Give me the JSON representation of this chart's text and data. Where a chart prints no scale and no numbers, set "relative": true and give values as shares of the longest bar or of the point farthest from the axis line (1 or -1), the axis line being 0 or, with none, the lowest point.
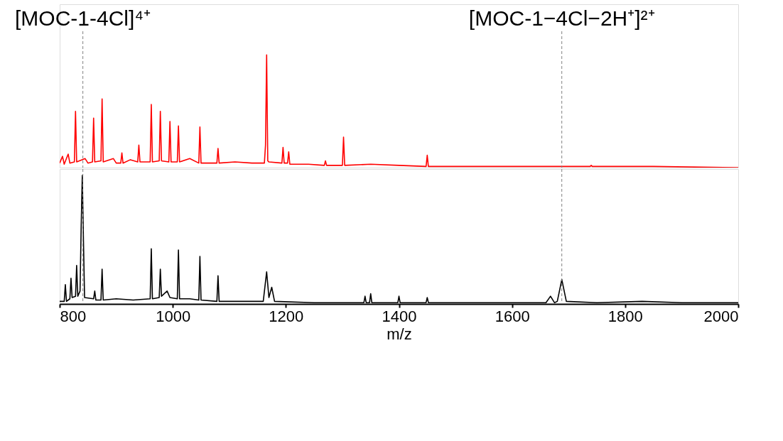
{
  "chart_data": [
    {
      "type": "line",
      "relative": true,
      "xlim": [
        800,
        2000
      ],
      "tick_labels": false,
      "grid": false,
      "ref_lines": [
        {
          "axis": "x",
          "value": 841,
          "label": "[MOC-1-4Cl]⁴⁺",
          "color": "#808080",
          "line_style": "dashed"
        },
        {
          "axis": "x",
          "value": 1688,
          "label": "[MOC-1−4Cl−2H⁺]²⁺",
          "color": "#808080",
          "line_style": "dashed"
        }
      ],
      "series": [
        {
          "color": "#ff0000",
          "x": [
            800,
            805,
            808,
            815,
            818,
            826,
            828,
            830,
            845,
            850,
            858,
            860,
            862,
            873,
            875,
            877,
            895,
            900,
            908,
            910,
            912,
            925,
            938,
            940,
            942,
            960,
            962,
            964,
            976,
            978,
            980,
            993,
            995,
            997,
            1008,
            1010,
            1012,
            1030,
            1046,
            1048,
            1050,
            1078,
            1080,
            1082,
            1110,
            1140,
            1162,
            1164,
            1166,
            1168,
            1170,
            1193,
            1195,
            1197,
            1203,
            1205,
            1207,
            1240,
            1268,
            1270,
            1272,
            1300,
            1302,
            1304,
            1350,
            1400,
            1448,
            1450,
            1452,
            1550,
            1650,
            1738,
            1740,
            1742,
            1850,
            2000
          ],
          "values": [
            0.04,
            0.1,
            0.03,
            0.12,
            0.04,
            0.05,
            0.5,
            0.05,
            0.08,
            0.04,
            0.05,
            0.44,
            0.05,
            0.06,
            0.61,
            0.05,
            0.08,
            0.04,
            0.04,
            0.13,
            0.04,
            0.07,
            0.05,
            0.2,
            0.05,
            0.05,
            0.56,
            0.05,
            0.06,
            0.5,
            0.06,
            0.05,
            0.41,
            0.05,
            0.05,
            0.37,
            0.05,
            0.08,
            0.04,
            0.36,
            0.04,
            0.04,
            0.17,
            0.04,
            0.05,
            0.04,
            0.04,
            0.2,
            1.0,
            0.06,
            0.05,
            0.04,
            0.18,
            0.04,
            0.04,
            0.14,
            0.03,
            0.03,
            0.02,
            0.06,
            0.02,
            0.02,
            0.27,
            0.02,
            0.03,
            0.02,
            0.01,
            0.11,
            0.01,
            0.01,
            0.01,
            0.01,
            0.02,
            0.01,
            0.01,
            0.0
          ]
        }
      ]
    },
    {
      "type": "line",
      "relative": true,
      "xlim": [
        800,
        2000
      ],
      "xticks": [
        800,
        1000,
        1200,
        1400,
        1600,
        1800,
        2000
      ],
      "xlabel": "m/z",
      "tick_labels": "x",
      "grid": false,
      "ref_lines": [
        {
          "axis": "x",
          "value": 841,
          "color": "#808080",
          "line_style": "dashed"
        },
        {
          "axis": "x",
          "value": 1688,
          "color": "#808080",
          "line_style": "dashed"
        }
      ],
      "series": [
        {
          "color": "#000000",
          "x": [
            800,
            808,
            810,
            812,
            818,
            820,
            822,
            828,
            830,
            832,
            836,
            838,
            840,
            842,
            844,
            860,
            862,
            864,
            873,
            875,
            877,
            900,
            930,
            960,
            962,
            964,
            976,
            978,
            980,
            990,
            995,
            1008,
            1010,
            1012,
            1030,
            1046,
            1048,
            1050,
            1078,
            1080,
            1082,
            1120,
            1160,
            1166,
            1170,
            1175,
            1180,
            1250,
            1300,
            1338,
            1340,
            1342,
            1348,
            1350,
            1352,
            1398,
            1400,
            1402,
            1448,
            1450,
            1452,
            1550,
            1660,
            1668,
            1675,
            1680,
            1688,
            1696,
            1750,
            1830,
            1900,
            2000
          ],
          "values": [
            0.02,
            0.02,
            0.15,
            0.02,
            0.04,
            0.2,
            0.05,
            0.06,
            0.3,
            0.06,
            0.1,
            0.6,
            1.0,
            0.5,
            0.05,
            0.04,
            0.1,
            0.03,
            0.03,
            0.27,
            0.03,
            0.04,
            0.03,
            0.04,
            0.43,
            0.04,
            0.05,
            0.27,
            0.06,
            0.1,
            0.05,
            0.04,
            0.42,
            0.04,
            0.04,
            0.03,
            0.37,
            0.03,
            0.02,
            0.22,
            0.02,
            0.02,
            0.02,
            0.25,
            0.05,
            0.13,
            0.02,
            0.01,
            0.01,
            0.01,
            0.06,
            0.01,
            0.01,
            0.08,
            0.01,
            0.01,
            0.06,
            0.01,
            0.01,
            0.05,
            0.01,
            0.01,
            0.01,
            0.06,
            0.01,
            0.02,
            0.19,
            0.02,
            0.01,
            0.02,
            0.01,
            0.01
          ]
        }
      ]
    }
  ]
}
